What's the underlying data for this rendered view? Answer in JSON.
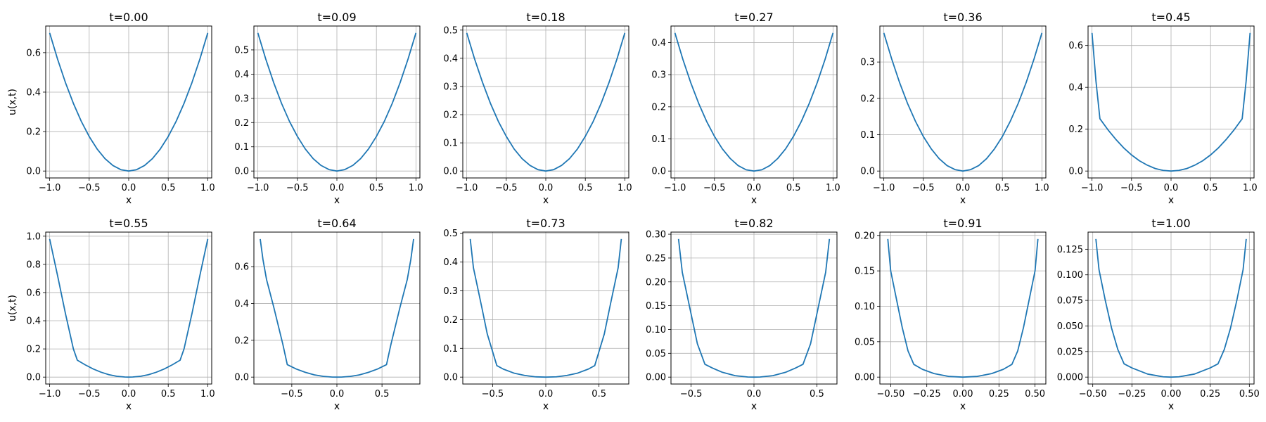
{
  "style": {
    "line_color": "#1f77b4",
    "grid": true
  },
  "chart_data": [
    {
      "type": "line",
      "title": "t=0.00",
      "xlabel": "x",
      "ylabel": "u(x,t)",
      "xlim": [
        -1.05,
        1.05
      ],
      "ylim": [
        -0.035,
        0.735
      ],
      "xticks": [
        -1,
        -0.5,
        0,
        0.5,
        1
      ],
      "xtick_labels": [
        "−1.0",
        "−0.5",
        "0.0",
        "0.5",
        "1.0"
      ],
      "yticks": [
        0,
        0.2,
        0.4,
        0.6
      ],
      "ytick_labels": [
        "0.0",
        "0.2",
        "0.4",
        "0.6"
      ],
      "series": [
        {
          "x": [
            -1,
            -0.9,
            -0.8,
            -0.7,
            -0.6,
            -0.5,
            -0.4,
            -0.3,
            -0.2,
            -0.1,
            0,
            0.1,
            0.2,
            0.3,
            0.4,
            0.5,
            0.6,
            0.7,
            0.8,
            0.9,
            1
          ],
          "y": [
            0.7,
            0.567,
            0.448,
            0.343,
            0.252,
            0.175,
            0.112,
            0.063,
            0.028,
            0.007,
            0,
            0.007,
            0.028,
            0.063,
            0.112,
            0.175,
            0.252,
            0.343,
            0.448,
            0.567,
            0.7
          ]
        }
      ]
    },
    {
      "type": "line",
      "title": "t=0.09",
      "xlabel": "x",
      "ylabel": "",
      "xlim": [
        -1.05,
        1.05
      ],
      "ylim": [
        -0.0285,
        0.5985
      ],
      "xticks": [
        -1,
        -0.5,
        0,
        0.5,
        1
      ],
      "xtick_labels": [
        "−1.0",
        "−0.5",
        "0.0",
        "0.5",
        "1.0"
      ],
      "yticks": [
        0,
        0.1,
        0.2,
        0.3,
        0.4,
        0.5
      ],
      "ytick_labels": [
        "0.0",
        "0.1",
        "0.2",
        "0.3",
        "0.4",
        "0.5"
      ],
      "series": [
        {
          "x": [
            -1,
            -0.9,
            -0.8,
            -0.7,
            -0.6,
            -0.5,
            -0.4,
            -0.3,
            -0.2,
            -0.1,
            0,
            0.1,
            0.2,
            0.3,
            0.4,
            0.5,
            0.6,
            0.7,
            0.8,
            0.9,
            1
          ],
          "y": [
            0.57,
            0.462,
            0.365,
            0.279,
            0.205,
            0.143,
            0.091,
            0.051,
            0.023,
            0.006,
            0,
            0.006,
            0.023,
            0.051,
            0.091,
            0.143,
            0.205,
            0.279,
            0.365,
            0.462,
            0.57
          ]
        }
      ]
    },
    {
      "type": "line",
      "title": "t=0.18",
      "xlabel": "x",
      "ylabel": "",
      "xlim": [
        -1.05,
        1.05
      ],
      "ylim": [
        -0.0245,
        0.5145
      ],
      "xticks": [
        -1,
        -0.5,
        0,
        0.5,
        1
      ],
      "xtick_labels": [
        "−1.0",
        "−0.5",
        "0.0",
        "0.5",
        "1.0"
      ],
      "yticks": [
        0,
        0.1,
        0.2,
        0.3,
        0.4,
        0.5
      ],
      "ytick_labels": [
        "0.0",
        "0.1",
        "0.2",
        "0.3",
        "0.4",
        "0.5"
      ],
      "series": [
        {
          "x": [
            -1,
            -0.9,
            -0.8,
            -0.7,
            -0.6,
            -0.5,
            -0.4,
            -0.3,
            -0.2,
            -0.1,
            0,
            0.1,
            0.2,
            0.3,
            0.4,
            0.5,
            0.6,
            0.7,
            0.8,
            0.9,
            1
          ],
          "y": [
            0.49,
            0.397,
            0.314,
            0.24,
            0.176,
            0.123,
            0.078,
            0.044,
            0.02,
            0.005,
            0,
            0.005,
            0.02,
            0.044,
            0.078,
            0.123,
            0.176,
            0.24,
            0.314,
            0.397,
            0.49
          ]
        }
      ]
    },
    {
      "type": "line",
      "title": "t=0.27",
      "xlabel": "x",
      "ylabel": "",
      "xlim": [
        -1.05,
        1.05
      ],
      "ylim": [
        -0.0215,
        0.4515
      ],
      "xticks": [
        -1,
        -0.5,
        0,
        0.5,
        1
      ],
      "xtick_labels": [
        "−1.0",
        "−0.5",
        "0.0",
        "0.5",
        "1.0"
      ],
      "yticks": [
        0,
        0.1,
        0.2,
        0.3,
        0.4
      ],
      "ytick_labels": [
        "0.0",
        "0.1",
        "0.2",
        "0.3",
        "0.4"
      ],
      "series": [
        {
          "x": [
            -1,
            -0.9,
            -0.8,
            -0.7,
            -0.6,
            -0.5,
            -0.4,
            -0.3,
            -0.2,
            -0.1,
            0,
            0.1,
            0.2,
            0.3,
            0.4,
            0.5,
            0.6,
            0.7,
            0.8,
            0.9,
            1
          ],
          "y": [
            0.43,
            0.348,
            0.275,
            0.211,
            0.155,
            0.108,
            0.069,
            0.039,
            0.017,
            0.004,
            0,
            0.004,
            0.017,
            0.039,
            0.069,
            0.108,
            0.155,
            0.211,
            0.275,
            0.348,
            0.43
          ]
        }
      ]
    },
    {
      "type": "line",
      "title": "t=0.36",
      "xlabel": "x",
      "ylabel": "",
      "xlim": [
        -1.05,
        1.05
      ],
      "ylim": [
        -0.019,
        0.399
      ],
      "xticks": [
        -1,
        -0.5,
        0,
        0.5,
        1
      ],
      "xtick_labels": [
        "−1.0",
        "−0.5",
        "0.0",
        "0.5",
        "1.0"
      ],
      "yticks": [
        0,
        0.1,
        0.2,
        0.3
      ],
      "ytick_labels": [
        "0.0",
        "0.1",
        "0.2",
        "0.3"
      ],
      "series": [
        {
          "x": [
            -1,
            -0.9,
            -0.8,
            -0.7,
            -0.6,
            -0.5,
            -0.4,
            -0.3,
            -0.2,
            -0.1,
            0,
            0.1,
            0.2,
            0.3,
            0.4,
            0.5,
            0.6,
            0.7,
            0.8,
            0.9,
            1
          ],
          "y": [
            0.38,
            0.308,
            0.243,
            0.186,
            0.137,
            0.095,
            0.061,
            0.034,
            0.015,
            0.004,
            0,
            0.004,
            0.015,
            0.034,
            0.061,
            0.095,
            0.137,
            0.186,
            0.243,
            0.308,
            0.38
          ]
        }
      ]
    },
    {
      "type": "line",
      "title": "t=0.45",
      "xlabel": "x",
      "ylabel": "",
      "xlim": [
        -1.05,
        1.05
      ],
      "ylim": [
        -0.033,
        0.693
      ],
      "xticks": [
        -1,
        -0.5,
        0,
        0.5,
        1
      ],
      "xtick_labels": [
        "−1.0",
        "−0.5",
        "0.0",
        "0.5",
        "1.0"
      ],
      "yticks": [
        0,
        0.2,
        0.4,
        0.6
      ],
      "ytick_labels": [
        "0.0",
        "0.2",
        "0.4",
        "0.6"
      ],
      "series": [
        {
          "x": [
            -1,
            -0.95,
            -0.9,
            -0.8,
            -0.7,
            -0.6,
            -0.5,
            -0.4,
            -0.3,
            -0.2,
            -0.1,
            0,
            0.1,
            0.2,
            0.3,
            0.4,
            0.5,
            0.6,
            0.7,
            0.8,
            0.9,
            0.95,
            1
          ],
          "y": [
            0.66,
            0.43,
            0.25,
            0.198,
            0.152,
            0.111,
            0.077,
            0.049,
            0.028,
            0.012,
            0.003,
            0,
            0.003,
            0.012,
            0.028,
            0.049,
            0.077,
            0.111,
            0.152,
            0.198,
            0.25,
            0.43,
            0.66
          ]
        }
      ]
    },
    {
      "type": "line",
      "title": "t=0.55",
      "xlabel": "x",
      "ylabel": "u(x,t)",
      "xlim": [
        -1.05,
        1.05
      ],
      "ylim": [
        -0.049,
        1.029
      ],
      "xticks": [
        -1,
        -0.5,
        0,
        0.5,
        1
      ],
      "xtick_labels": [
        "−1.0",
        "−0.5",
        "0.0",
        "0.5",
        "1.0"
      ],
      "yticks": [
        0,
        0.2,
        0.4,
        0.6,
        0.8,
        1
      ],
      "ytick_labels": [
        "0.0",
        "0.2",
        "0.4",
        "0.6",
        "0.8",
        "1.0"
      ],
      "series": [
        {
          "x": [
            -1,
            -0.9,
            -0.8,
            -0.7,
            -0.65,
            -0.55,
            -0.45,
            -0.35,
            -0.25,
            -0.15,
            -0.05,
            0,
            0.05,
            0.15,
            0.25,
            0.35,
            0.45,
            0.55,
            0.65,
            0.7,
            0.8,
            0.9,
            1
          ],
          "y": [
            0.98,
            0.72,
            0.45,
            0.2,
            0.12,
            0.087,
            0.058,
            0.035,
            0.017,
            0.006,
            0.001,
            0,
            0.001,
            0.006,
            0.017,
            0.035,
            0.058,
            0.087,
            0.12,
            0.2,
            0.45,
            0.72,
            0.98
          ]
        }
      ]
    },
    {
      "type": "line",
      "title": "t=0.64",
      "xlabel": "x",
      "ylabel": "",
      "xlim": [
        -0.92,
        0.92
      ],
      "ylim": [
        -0.0375,
        0.7875
      ],
      "xticks": [
        -0.5,
        0,
        0.5
      ],
      "xtick_labels": [
        "−0.5",
        "0.0",
        "0.5"
      ],
      "yticks": [
        0,
        0.2,
        0.4,
        0.6
      ],
      "ytick_labels": [
        "0.0",
        "0.2",
        "0.4",
        "0.6"
      ],
      "series": [
        {
          "x": [
            -0.85,
            -0.82,
            -0.78,
            -0.7,
            -0.6,
            -0.55,
            -0.45,
            -0.35,
            -0.25,
            -0.15,
            -0.05,
            0,
            0.05,
            0.15,
            0.25,
            0.35,
            0.45,
            0.55,
            0.6,
            0.7,
            0.78,
            0.82,
            0.85
          ],
          "y": [
            0.75,
            0.64,
            0.53,
            0.38,
            0.18,
            0.068,
            0.044,
            0.026,
            0.012,
            0.004,
            0.0003,
            0,
            0.0003,
            0.004,
            0.012,
            0.026,
            0.044,
            0.068,
            0.18,
            0.38,
            0.53,
            0.64,
            0.75
          ]
        }
      ]
    },
    {
      "type": "line",
      "title": "t=0.73",
      "xlabel": "x",
      "ylabel": "",
      "xlim": [
        -0.78,
        0.78
      ],
      "ylim": [
        -0.024,
        0.504
      ],
      "xticks": [
        -0.5,
        0,
        0.5
      ],
      "xtick_labels": [
        "−0.5",
        "0.0",
        "0.5"
      ],
      "yticks": [
        0,
        0.1,
        0.2,
        0.3,
        0.4,
        0.5
      ],
      "ytick_labels": [
        "0.0",
        "0.1",
        "0.2",
        "0.3",
        "0.4",
        "0.5"
      ],
      "series": [
        {
          "x": [
            -0.71,
            -0.68,
            -0.64,
            -0.6,
            -0.55,
            -0.46,
            -0.4,
            -0.3,
            -0.2,
            -0.1,
            0,
            0.1,
            0.2,
            0.3,
            0.4,
            0.46,
            0.55,
            0.6,
            0.64,
            0.68,
            0.71
          ],
          "y": [
            0.48,
            0.38,
            0.31,
            0.24,
            0.15,
            0.04,
            0.028,
            0.014,
            0.006,
            0.001,
            0,
            0.001,
            0.006,
            0.014,
            0.028,
            0.04,
            0.15,
            0.24,
            0.31,
            0.38,
            0.48
          ]
        }
      ]
    },
    {
      "type": "line",
      "title": "t=0.82",
      "xlabel": "x",
      "ylabel": "",
      "xlim": [
        -0.66,
        0.66
      ],
      "ylim": [
        -0.0145,
        0.3045
      ],
      "xticks": [
        -0.5,
        0,
        0.5
      ],
      "xtick_labels": [
        "−0.5",
        "0.0",
        "0.5"
      ],
      "yticks": [
        0,
        0.05,
        0.1,
        0.15,
        0.2,
        0.25,
        0.3
      ],
      "ytick_labels": [
        "0.00",
        "0.05",
        "0.10",
        "0.15",
        "0.20",
        "0.25",
        "0.30"
      ],
      "series": [
        {
          "x": [
            -0.6,
            -0.57,
            -0.53,
            -0.49,
            -0.45,
            -0.39,
            -0.33,
            -0.25,
            -0.15,
            -0.05,
            0,
            0.05,
            0.15,
            0.25,
            0.33,
            0.39,
            0.45,
            0.49,
            0.53,
            0.57,
            0.6
          ],
          "y": [
            0.29,
            0.22,
            0.17,
            0.12,
            0.07,
            0.027,
            0.019,
            0.01,
            0.003,
            0.0003,
            0,
            0.0003,
            0.003,
            0.01,
            0.019,
            0.027,
            0.07,
            0.12,
            0.17,
            0.22,
            0.29
          ]
        }
      ]
    },
    {
      "type": "line",
      "title": "t=0.91",
      "xlabel": "x",
      "ylabel": "",
      "xlim": [
        -0.575,
        0.575
      ],
      "ylim": [
        -0.00975,
        0.20475
      ],
      "xticks": [
        -0.5,
        -0.25,
        0,
        0.25,
        0.5
      ],
      "xtick_labels": [
        "−0.50",
        "−0.25",
        "0.00",
        "0.25",
        "0.50"
      ],
      "yticks": [
        0,
        0.05,
        0.1,
        0.15,
        0.2
      ],
      "ytick_labels": [
        "0.00",
        "0.05",
        "0.10",
        "0.15",
        "0.20"
      ],
      "series": [
        {
          "x": [
            -0.52,
            -0.5,
            -0.46,
            -0.42,
            -0.38,
            -0.34,
            -0.28,
            -0.2,
            -0.1,
            0,
            0.1,
            0.2,
            0.28,
            0.34,
            0.38,
            0.42,
            0.46,
            0.5,
            0.52
          ],
          "y": [
            0.195,
            0.15,
            0.11,
            0.07,
            0.037,
            0.018,
            0.011,
            0.005,
            0.001,
            0,
            0.001,
            0.005,
            0.011,
            0.018,
            0.037,
            0.07,
            0.11,
            0.15,
            0.195
          ]
        }
      ]
    },
    {
      "type": "line",
      "title": "t=1.00",
      "xlabel": "x",
      "ylabel": "",
      "xlim": [
        -0.53,
        0.53
      ],
      "ylim": [
        -0.00675,
        0.14175
      ],
      "xticks": [
        -0.5,
        -0.25,
        0,
        0.25,
        0.5
      ],
      "xtick_labels": [
        "−0.50",
        "−0.25",
        "0.00",
        "0.25",
        "0.50"
      ],
      "yticks": [
        0,
        0.025,
        0.05,
        0.075,
        0.1,
        0.125
      ],
      "ytick_labels": [
        "0.000",
        "0.025",
        "0.050",
        "0.075",
        "0.100",
        "0.125"
      ],
      "series": [
        {
          "x": [
            -0.48,
            -0.46,
            -0.42,
            -0.38,
            -0.34,
            -0.3,
            -0.25,
            -0.15,
            -0.05,
            0,
            0.05,
            0.15,
            0.25,
            0.3,
            0.34,
            0.38,
            0.42,
            0.46,
            0.48
          ],
          "y": [
            0.135,
            0.105,
            0.075,
            0.048,
            0.027,
            0.013,
            0.009,
            0.003,
            0.0003,
            0,
            0.0003,
            0.003,
            0.009,
            0.013,
            0.027,
            0.048,
            0.075,
            0.105,
            0.135
          ]
        }
      ]
    }
  ]
}
